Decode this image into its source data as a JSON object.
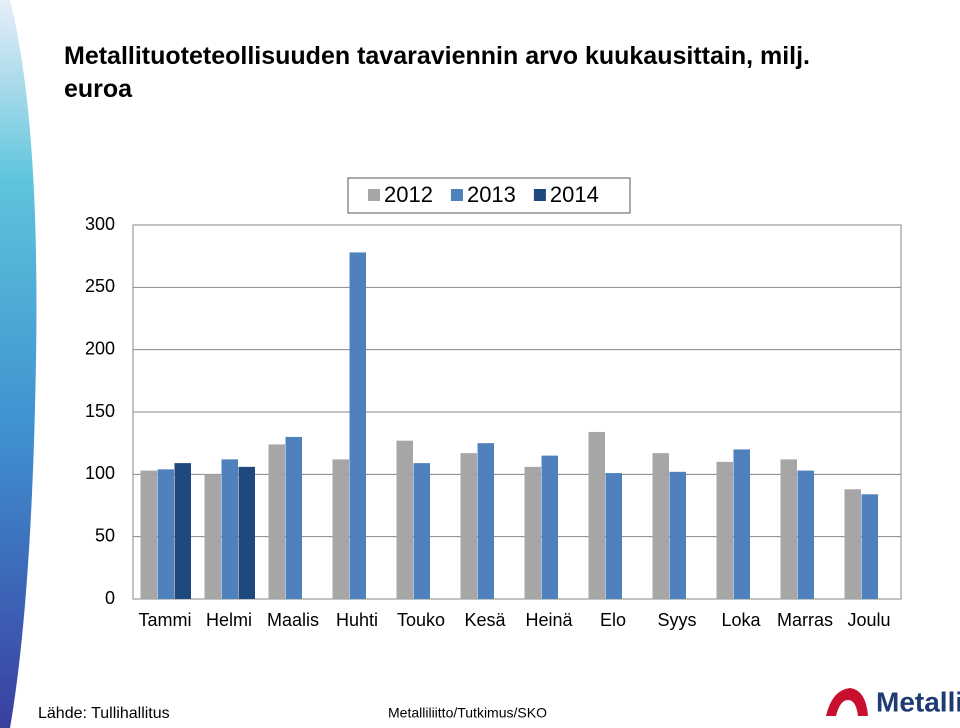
{
  "chart_data": {
    "type": "bar",
    "title": "Metallituoteteollisuuden tavaraviennin arvo kuukausittain, milj. euroa",
    "categories": [
      "Tammi",
      "Helmi",
      "Maalis",
      "Huhti",
      "Touko",
      "Kesä",
      "Heinä",
      "Elo",
      "Syys",
      "Loka",
      "Marras",
      "Joulu"
    ],
    "series": [
      {
        "name": "2012",
        "color": "#a6a6a6",
        "values": [
          103,
          100,
          124,
          112,
          127,
          117,
          106,
          134,
          117,
          110,
          112,
          88
        ]
      },
      {
        "name": "2013",
        "color": "#4f81bd",
        "values": [
          104,
          112,
          130,
          278,
          109,
          125,
          115,
          101,
          102,
          120,
          103,
          84
        ]
      },
      {
        "name": "2014",
        "color": "#1f497d",
        "values": [
          109,
          106,
          null,
          null,
          null,
          null,
          null,
          null,
          null,
          null,
          null,
          null
        ]
      }
    ],
    "ylim": [
      0,
      300
    ],
    "yticks": [
      0,
      50,
      100,
      150,
      200,
      250,
      300
    ],
    "grid": true,
    "legend": "top"
  },
  "source": "Lähde: Tullihallitus",
  "footer": "Metalliliitto/Tutkimus/SKO",
  "logo": "Metalli"
}
